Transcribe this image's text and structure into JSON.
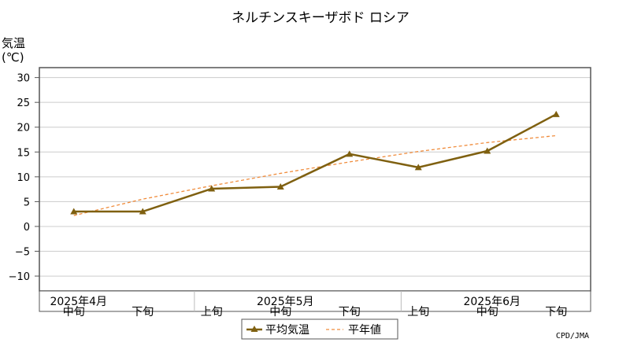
{
  "chart_data": {
    "type": "line",
    "title": "ネルチンスキーザボド ロシア",
    "ylabel": "気温",
    "yunit": "(℃)",
    "ylim": [
      -13,
      32
    ],
    "yticks": [
      30,
      25,
      20,
      15,
      10,
      5,
      0,
      -5,
      -10
    ],
    "ytick_labels": [
      "30",
      "25",
      "20",
      "15",
      "10",
      "5",
      "0",
      "−5",
      "−10"
    ],
    "x": [
      "2025年4月中旬",
      "2025年4月下旬",
      "2025年5月上旬",
      "2025年5月中旬",
      "2025年5月下旬",
      "2025年6月上旬",
      "2025年6月中旬",
      "2025年6月下旬"
    ],
    "x_period_labels": [
      "中旬",
      "下旬",
      "上旬",
      "中旬",
      "下旬",
      "上旬",
      "中旬",
      "下旬"
    ],
    "x_month_labels": [
      {
        "label": "2025年4月",
        "index": 0
      },
      {
        "label": "2025年5月",
        "index": 3
      },
      {
        "label": "2025年6月",
        "index": 6
      }
    ],
    "series": [
      {
        "name": "平均気温",
        "color": "#7f6010",
        "style": "solid",
        "marker": "triangle",
        "values": [
          3.0,
          3.0,
          7.6,
          8.0,
          14.6,
          11.9,
          15.2,
          22.6
        ]
      },
      {
        "name": "平年値",
        "color": "#f08c3c",
        "style": "dashed",
        "values": [
          2.2,
          5.5,
          8.2,
          10.7,
          13.0,
          15.1,
          16.9,
          18.3
        ]
      }
    ],
    "grid": true,
    "legend_position": "bottom-center",
    "credit": "CPD/JMA"
  }
}
